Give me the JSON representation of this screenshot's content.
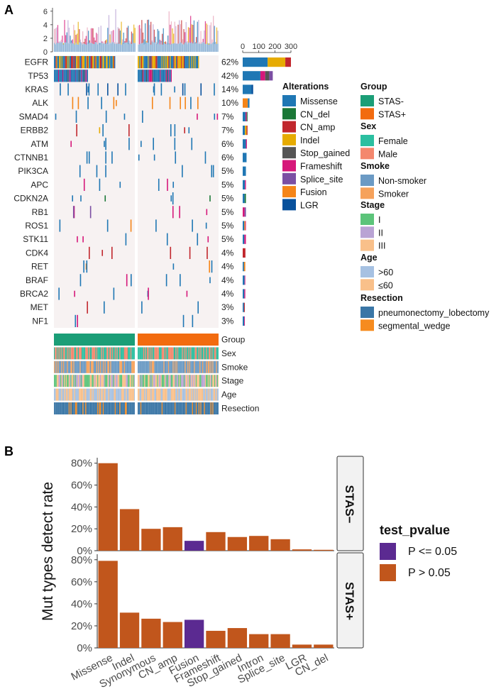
{
  "colors": {
    "Missense": "#1f77b4",
    "CN_del": "#1b7837",
    "CN_amp": "#c1272d",
    "Indel": "#e6ab02",
    "Stop_gained": "#555555",
    "Frameshift": "#d6187a",
    "Splice_site": "#7b4fa3",
    "Fusion": "#f58518",
    "LGR": "#08519c",
    "STAS-": "#1b9e77",
    "STAS+": "#f26b0f",
    "Female": "#2bbfa0",
    "Male": "#f4876d",
    "Non-smoker": "#6b9ac4",
    "Smoker": "#f6a25b",
    "StageI": "#5cc47a",
    "StageII": "#b9a3d4",
    "StageIII": "#f9c08a",
    "Age>60": "#a6c1e2",
    "Age<=60": "#f9c08a",
    "pneumonectomy_lobectomy": "#3a76a6",
    "segmental_wedge": "#f68b1f",
    "bg": "#f7f2f2",
    "pvalue_sig": "#5b2a91",
    "pvalue_ns": "#c1561c"
  },
  "panelA": {
    "label": "A",
    "top_bar_ticks": [
      "0",
      "2",
      "4",
      "6"
    ],
    "side_bar_ticks": [
      "0",
      "100",
      "200",
      "300"
    ],
    "genes": [
      {
        "name": "EGFR",
        "pct": "62%",
        "counts": [
          {
            "type": "Missense",
            "n": 155
          },
          {
            "type": "Indel",
            "n": 110
          },
          {
            "type": "CN_amp",
            "n": 35
          }
        ]
      },
      {
        "name": "TP53",
        "pct": "42%",
        "counts": [
          {
            "type": "Missense",
            "n": 110
          },
          {
            "type": "Frameshift",
            "n": 30
          },
          {
            "type": "Stop_gained",
            "n": 25
          },
          {
            "type": "Splice_site",
            "n": 22
          }
        ]
      },
      {
        "name": "KRAS",
        "pct": "14%",
        "counts": [
          {
            "type": "Missense",
            "n": 55
          },
          {
            "type": "LGR",
            "n": 10
          }
        ]
      },
      {
        "name": "ALK",
        "pct": "10%",
        "counts": [
          {
            "type": "Fusion",
            "n": 32
          },
          {
            "type": "Missense",
            "n": 10
          }
        ]
      },
      {
        "name": "SMAD4",
        "pct": "7%",
        "counts": [
          {
            "type": "Missense",
            "n": 18
          },
          {
            "type": "Frameshift",
            "n": 7
          },
          {
            "type": "CN_del",
            "n": 5
          }
        ]
      },
      {
        "name": "ERBB2",
        "pct": "7%",
        "counts": [
          {
            "type": "Missense",
            "n": 14
          },
          {
            "type": "Indel",
            "n": 10
          },
          {
            "type": "CN_amp",
            "n": 6
          }
        ]
      },
      {
        "name": "ATM",
        "pct": "6%",
        "counts": [
          {
            "type": "Missense",
            "n": 20
          },
          {
            "type": "Frameshift",
            "n": 6
          }
        ]
      },
      {
        "name": "CTNNB1",
        "pct": "6%",
        "counts": [
          {
            "type": "Missense",
            "n": 24
          }
        ]
      },
      {
        "name": "PIK3CA",
        "pct": "5%",
        "counts": [
          {
            "type": "Missense",
            "n": 20
          }
        ]
      },
      {
        "name": "APC",
        "pct": "5%",
        "counts": [
          {
            "type": "Missense",
            "n": 14
          },
          {
            "type": "Frameshift",
            "n": 6
          }
        ]
      },
      {
        "name": "CDKN2A",
        "pct": "5%",
        "counts": [
          {
            "type": "Missense",
            "n": 12
          },
          {
            "type": "CN_del",
            "n": 8
          }
        ]
      },
      {
        "name": "RB1",
        "pct": "5%",
        "counts": [
          {
            "type": "Frameshift",
            "n": 12
          },
          {
            "type": "Splice_site",
            "n": 8
          }
        ]
      },
      {
        "name": "ROS1",
        "pct": "5%",
        "counts": [
          {
            "type": "Missense",
            "n": 10
          },
          {
            "type": "Fusion",
            "n": 6
          },
          {
            "type": "Frameshift",
            "n": 4
          }
        ]
      },
      {
        "name": "STK11",
        "pct": "5%",
        "counts": [
          {
            "type": "Missense",
            "n": 10
          },
          {
            "type": "Frameshift",
            "n": 10
          }
        ]
      },
      {
        "name": "CDK4",
        "pct": "4%",
        "counts": [
          {
            "type": "CN_amp",
            "n": 17
          }
        ]
      },
      {
        "name": "RET",
        "pct": "4%",
        "counts": [
          {
            "type": "Missense",
            "n": 8
          },
          {
            "type": "Fusion",
            "n": 8
          }
        ]
      },
      {
        "name": "BRAF",
        "pct": "4%",
        "counts": [
          {
            "type": "Missense",
            "n": 12
          },
          {
            "type": "Frameshift",
            "n": 4
          }
        ]
      },
      {
        "name": "BRCA2",
        "pct": "4%",
        "counts": [
          {
            "type": "Missense",
            "n": 10
          },
          {
            "type": "Frameshift",
            "n": 6
          }
        ]
      },
      {
        "name": "MET",
        "pct": "3%",
        "counts": [
          {
            "type": "Missense",
            "n": 8
          },
          {
            "type": "CN_amp",
            "n": 5
          }
        ]
      },
      {
        "name": "NF1",
        "pct": "3%",
        "counts": [
          {
            "type": "Missense",
            "n": 9
          },
          {
            "type": "Frameshift",
            "n": 4
          }
        ]
      }
    ],
    "annotation_tracks": [
      "Group",
      "Sex",
      "Smoke",
      "Stage",
      "Age",
      "Resection"
    ],
    "legends": {
      "alterations": {
        "title": "Alterations",
        "items": [
          "Missense",
          "CN_del",
          "CN_amp",
          "Indel",
          "Stop_gained",
          "Frameshift",
          "Splice_site",
          "Fusion",
          "LGR"
        ]
      },
      "group": {
        "title": "Group",
        "items": [
          {
            "label": "STAS-",
            "key": "STAS-"
          },
          {
            "label": "STAS+",
            "key": "STAS+"
          }
        ]
      },
      "sex": {
        "title": "Sex",
        "items": [
          {
            "label": "Female",
            "key": "Female"
          },
          {
            "label": "Male",
            "key": "Male"
          }
        ]
      },
      "smoke": {
        "title": "Smoke",
        "items": [
          {
            "label": "Non-smoker",
            "key": "Non-smoker"
          },
          {
            "label": "Smoker",
            "key": "Smoker"
          }
        ]
      },
      "stage": {
        "title": "Stage",
        "items": [
          {
            "label": "I",
            "key": "StageI"
          },
          {
            "label": "II",
            "key": "StageII"
          },
          {
            "label": "III",
            "key": "StageIII"
          }
        ]
      },
      "age": {
        "title": "Age",
        "items": [
          {
            "label": ">60",
            "key": "Age>60"
          },
          {
            "label": "≤60",
            "key": "Age<=60"
          }
        ]
      },
      "resection": {
        "title": "Resection",
        "items": [
          {
            "label": "pneumonectomy_lobectomy",
            "key": "pneumonectomy_lobectomy"
          },
          {
            "label": "segmental_wedge",
            "key": "segmental_wedge"
          }
        ]
      }
    }
  },
  "chart_data": {
    "type": "bar",
    "panel_label": "B",
    "ylabel": "Mut types detect rate",
    "ylim": [
      0,
      0.85
    ],
    "yticks": [
      "0%",
      "20%",
      "40%",
      "60%",
      "80%"
    ],
    "categories": [
      "Missense",
      "Indel",
      "Synonymous",
      "CN_amp",
      "Fusion",
      "Frameshift",
      "Stop_gained",
      "Intron",
      "Splice_site",
      "LGR",
      "CN_del"
    ],
    "facets": [
      {
        "name": "STAS−",
        "values": [
          0.8,
          0.38,
          0.2,
          0.215,
          0.09,
          0.17,
          0.125,
          0.135,
          0.105,
          0.012,
          0.008
        ],
        "pvalue": [
          "P > 0.05",
          "P > 0.05",
          "P > 0.05",
          "P > 0.05",
          "P <= 0.05",
          "P > 0.05",
          "P > 0.05",
          "P > 0.05",
          "P > 0.05",
          "P > 0.05",
          "P > 0.05"
        ]
      },
      {
        "name": "STAS+",
        "values": [
          0.79,
          0.32,
          0.265,
          0.235,
          0.255,
          0.155,
          0.18,
          0.125,
          0.125,
          0.03,
          0.03
        ],
        "pvalue": [
          "P > 0.05",
          "P > 0.05",
          "P > 0.05",
          "P > 0.05",
          "P <= 0.05",
          "P > 0.05",
          "P > 0.05",
          "P > 0.05",
          "P > 0.05",
          "P > 0.05",
          "P > 0.05"
        ]
      }
    ],
    "legend": {
      "title": "test_pvalue",
      "items": [
        "P <= 0.05",
        "P > 0.05"
      ]
    }
  }
}
